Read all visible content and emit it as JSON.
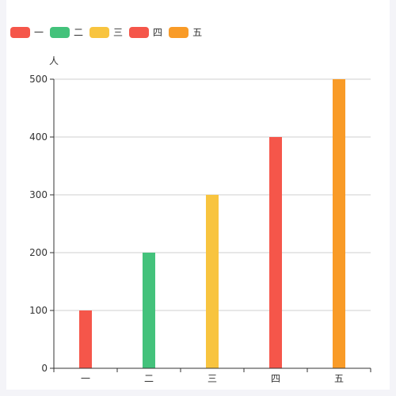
{
  "chart_data": {
    "type": "bar",
    "ylabel": "人",
    "categories": [
      "一",
      "二",
      "三",
      "四",
      "五"
    ],
    "values": [
      100,
      200,
      300,
      400,
      500
    ],
    "ylim": [
      0,
      500
    ],
    "yticks": [
      0,
      100,
      200,
      300,
      400,
      500
    ],
    "grid": true,
    "legend_position": "top-left",
    "colors": [
      "#f5564a",
      "#43c27b",
      "#f8c43f",
      "#f5564a",
      "#f99b27"
    ],
    "legend": [
      {
        "label": "一",
        "color": "#f5564a"
      },
      {
        "label": "二",
        "color": "#43c27b"
      },
      {
        "label": "三",
        "color": "#f8c43f"
      },
      {
        "label": "四",
        "color": "#f5564a"
      },
      {
        "label": "五",
        "color": "#f99b27"
      }
    ]
  }
}
